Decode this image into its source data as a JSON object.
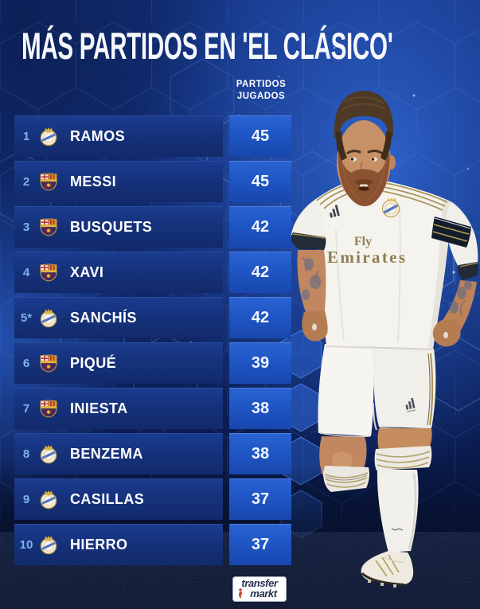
{
  "title": "MÁS PARTIDOS EN 'EL CLÁSICO'",
  "column_header": [
    "PARTIDOS",
    "JUGADOS"
  ],
  "chart_data": {
    "type": "table",
    "title": "MÁS PARTIDOS EN 'EL CLÁSICO'",
    "value_column": "PARTIDOS JUGADOS",
    "rows": [
      {
        "rank": "1",
        "player": "RAMOS",
        "club": "real-madrid",
        "matches": 45
      },
      {
        "rank": "2",
        "player": "MESSI",
        "club": "barcelona",
        "matches": 45
      },
      {
        "rank": "3",
        "player": "BUSQUETS",
        "club": "barcelona",
        "matches": 42
      },
      {
        "rank": "4",
        "player": "XAVI",
        "club": "barcelona",
        "matches": 42
      },
      {
        "rank": "5*",
        "player": "SANCHÍS",
        "club": "real-madrid",
        "matches": 42
      },
      {
        "rank": "6",
        "player": "PIQUÉ",
        "club": "barcelona",
        "matches": 39
      },
      {
        "rank": "7",
        "player": "INIESTA",
        "club": "barcelona",
        "matches": 38
      },
      {
        "rank": "8",
        "player": "BENZEMA",
        "club": "real-madrid",
        "matches": 38
      },
      {
        "rank": "9",
        "player": "CASILLAS",
        "club": "real-madrid",
        "matches": 37
      },
      {
        "rank": "10",
        "player": "HIERRO",
        "club": "real-madrid",
        "matches": 37
      }
    ]
  },
  "player_image": {
    "jersey_sponsor_line1": "Fly",
    "jersey_sponsor_line2": "Emirates"
  },
  "footer_logo": {
    "line1": "transfer",
    "line2": "markt"
  },
  "colors": {
    "background": "#0e2464",
    "row_bar": "#16327c",
    "value_box": "#1e55c3",
    "rank_text": "#7db3ec",
    "title_text": "#f6f8fc"
  }
}
